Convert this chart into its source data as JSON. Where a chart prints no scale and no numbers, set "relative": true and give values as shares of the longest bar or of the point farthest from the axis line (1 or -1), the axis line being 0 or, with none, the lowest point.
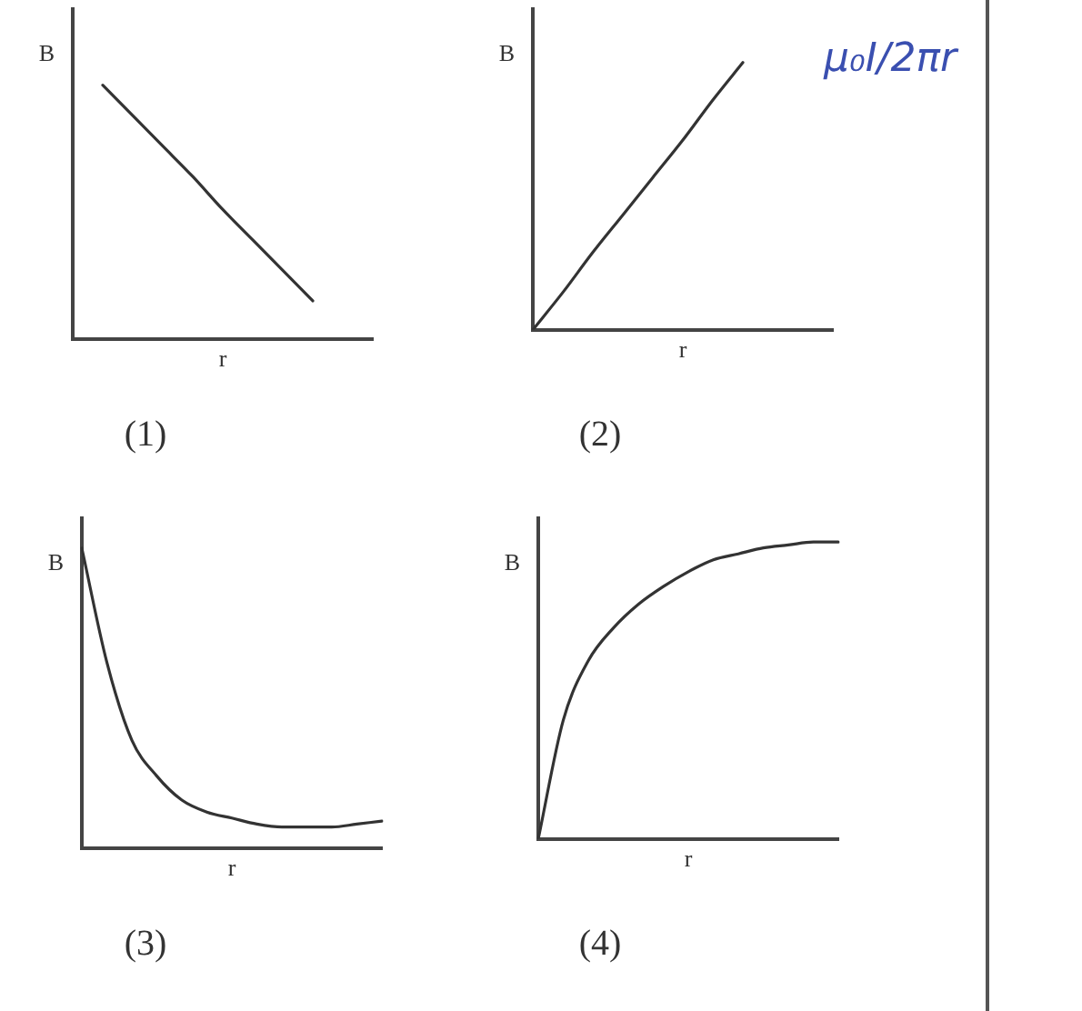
{
  "chart_data": [
    {
      "type": "line",
      "relative": true,
      "xlabel": "r",
      "ylabel": "B",
      "annotations": [
        "(1)"
      ],
      "color": "#333333",
      "categories": [
        null,
        null,
        null,
        null,
        null,
        null,
        null,
        null,
        null,
        null,
        null
      ],
      "values": [
        null,
        1,
        0.88,
        0.76,
        0.64,
        0.51,
        0.39,
        0.27,
        0.15,
        null,
        null
      ]
    },
    {
      "type": "line",
      "relative": true,
      "xlabel": "r",
      "ylabel": "B",
      "annotations": [
        "(2)",
        "μ₀I/2πr"
      ],
      "color": "#333333",
      "categories": [
        null,
        null,
        null,
        null,
        null,
        null,
        null,
        null,
        null,
        null,
        null
      ],
      "values": [
        0,
        0.14,
        0.29,
        0.43,
        0.57,
        0.71,
        0.86,
        1,
        null,
        null,
        null
      ]
    },
    {
      "type": "line",
      "relative": true,
      "xlabel": "r",
      "ylabel": "B",
      "annotations": [
        "(3)"
      ],
      "color": "#333333",
      "categories": [
        null,
        null,
        null,
        null,
        null,
        null,
        null,
        null,
        null,
        null,
        null,
        null,
        null
      ],
      "values": [
        1,
        0.62,
        0.36,
        0.24,
        0.16,
        0.12,
        0.1,
        0.08,
        0.07,
        0.07,
        0.07,
        0.08,
        0.09
      ]
    },
    {
      "type": "line",
      "relative": true,
      "xlabel": "r",
      "ylabel": "B",
      "annotations": [
        "(4)"
      ],
      "color": "#333333",
      "categories": [
        null,
        null,
        null,
        null,
        null,
        null,
        null,
        null,
        null,
        null,
        null,
        null,
        null
      ],
      "values": [
        0,
        0.4,
        0.6,
        0.71,
        0.79,
        0.85,
        0.9,
        0.94,
        0.96,
        0.98,
        0.99,
        1,
        1
      ]
    }
  ]
}
